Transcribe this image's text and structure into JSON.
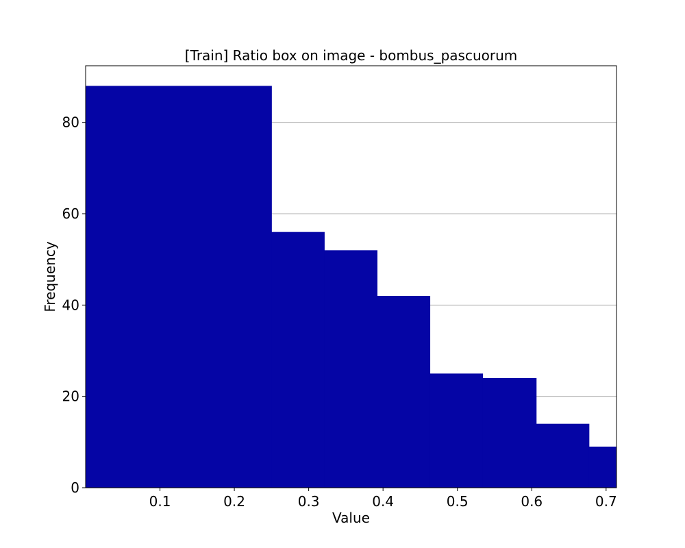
{
  "chart_data": {
    "type": "bar",
    "histogram": true,
    "title": "[Train] Ratio box on image - bombus_pascuorum",
    "xlabel": "Value",
    "ylabel": "Frequency",
    "bin_edges": [
      0.0,
      0.25,
      0.321,
      0.392,
      0.463,
      0.534,
      0.606,
      0.677,
      0.714
    ],
    "values": [
      88,
      56,
      52,
      42,
      25,
      24,
      14,
      9
    ],
    "xlim": [
      0.0,
      0.714
    ],
    "ylim": [
      0,
      92.4
    ],
    "xticks": [
      0.1,
      0.2,
      0.3,
      0.4,
      0.5,
      0.6,
      0.7
    ],
    "xtick_labels": [
      "0.1",
      "0.2",
      "0.3",
      "0.4",
      "0.5",
      "0.6",
      "0.7"
    ],
    "yticks": [
      0,
      20,
      40,
      60,
      80
    ],
    "ytick_labels": [
      "0",
      "20",
      "40",
      "60",
      "80"
    ],
    "grid": "y",
    "bar_color": "#0505a5",
    "grid_color": "#b0b0b0"
  }
}
